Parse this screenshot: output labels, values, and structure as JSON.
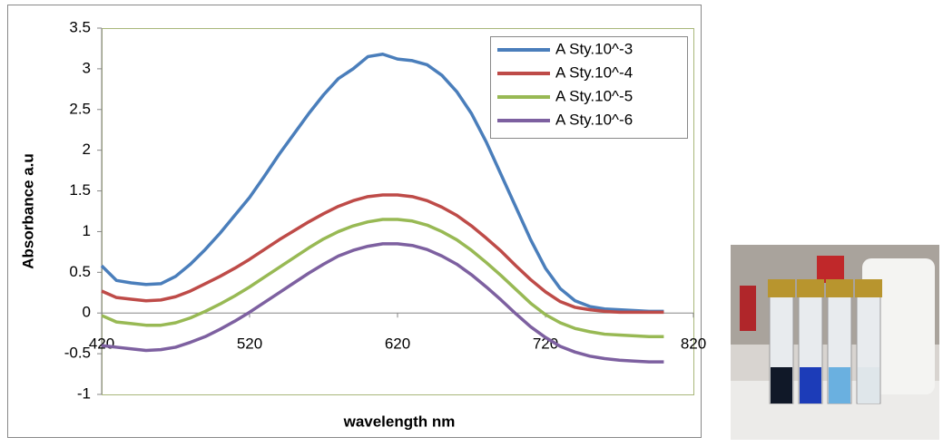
{
  "chart_data": {
    "type": "line",
    "xlabel": "wavelength nm",
    "ylabel": "Absorbance a.u",
    "x": [
      420,
      430,
      440,
      450,
      460,
      470,
      480,
      490,
      500,
      510,
      520,
      530,
      540,
      550,
      560,
      570,
      580,
      590,
      600,
      610,
      620,
      630,
      640,
      650,
      660,
      670,
      680,
      690,
      700,
      710,
      720,
      730,
      740,
      750,
      760,
      770,
      780,
      790,
      800
    ],
    "series": [
      {
        "name": "A Sty.10^-3",
        "color": "#4a7ebb",
        "values": [
          0.58,
          0.4,
          0.37,
          0.35,
          0.36,
          0.45,
          0.6,
          0.78,
          0.98,
          1.2,
          1.42,
          1.68,
          1.95,
          2.2,
          2.45,
          2.68,
          2.88,
          3.0,
          3.15,
          3.18,
          3.12,
          3.1,
          3.05,
          2.92,
          2.72,
          2.45,
          2.1,
          1.7,
          1.3,
          0.9,
          0.55,
          0.3,
          0.15,
          0.08,
          0.05,
          0.04,
          0.03,
          0.02,
          0.02
        ]
      },
      {
        "name": "A Sty.10^-4",
        "color": "#be4b48",
        "values": [
          0.27,
          0.19,
          0.17,
          0.15,
          0.16,
          0.2,
          0.27,
          0.36,
          0.45,
          0.55,
          0.66,
          0.78,
          0.9,
          1.01,
          1.12,
          1.22,
          1.31,
          1.38,
          1.43,
          1.45,
          1.45,
          1.43,
          1.38,
          1.3,
          1.2,
          1.07,
          0.92,
          0.76,
          0.58,
          0.41,
          0.26,
          0.14,
          0.07,
          0.04,
          0.02,
          0.01,
          0.01,
          0.01,
          0.01
        ]
      },
      {
        "name": "A Sty.10^-5",
        "color": "#98b954",
        "values": [
          -0.03,
          -0.11,
          -0.13,
          -0.15,
          -0.15,
          -0.12,
          -0.06,
          0.02,
          0.11,
          0.21,
          0.32,
          0.44,
          0.56,
          0.68,
          0.8,
          0.91,
          1.0,
          1.07,
          1.12,
          1.15,
          1.15,
          1.13,
          1.08,
          1.0,
          0.9,
          0.77,
          0.62,
          0.46,
          0.29,
          0.12,
          -0.02,
          -0.12,
          -0.19,
          -0.23,
          -0.26,
          -0.27,
          -0.28,
          -0.29,
          -0.29
        ]
      },
      {
        "name": "A Sty.10^-6",
        "color": "#7d60a0",
        "values": [
          -0.4,
          -0.42,
          -0.44,
          -0.46,
          -0.45,
          -0.42,
          -0.36,
          -0.29,
          -0.2,
          -0.1,
          0.01,
          0.13,
          0.25,
          0.37,
          0.49,
          0.6,
          0.7,
          0.77,
          0.82,
          0.85,
          0.85,
          0.83,
          0.78,
          0.7,
          0.6,
          0.47,
          0.32,
          0.16,
          -0.01,
          -0.17,
          -0.3,
          -0.41,
          -0.48,
          -0.53,
          -0.56,
          -0.58,
          -0.59,
          -0.6,
          -0.6
        ]
      }
    ],
    "xlim": [
      420,
      820
    ],
    "xticks": [
      420,
      520,
      620,
      720,
      820
    ],
    "ylim": [
      -1,
      3.5
    ],
    "yticks": [
      -1,
      -0.5,
      0,
      0.5,
      1,
      1.5,
      2,
      2.5,
      3,
      3.5
    ],
    "grid": false,
    "legend": "top-right"
  }
}
